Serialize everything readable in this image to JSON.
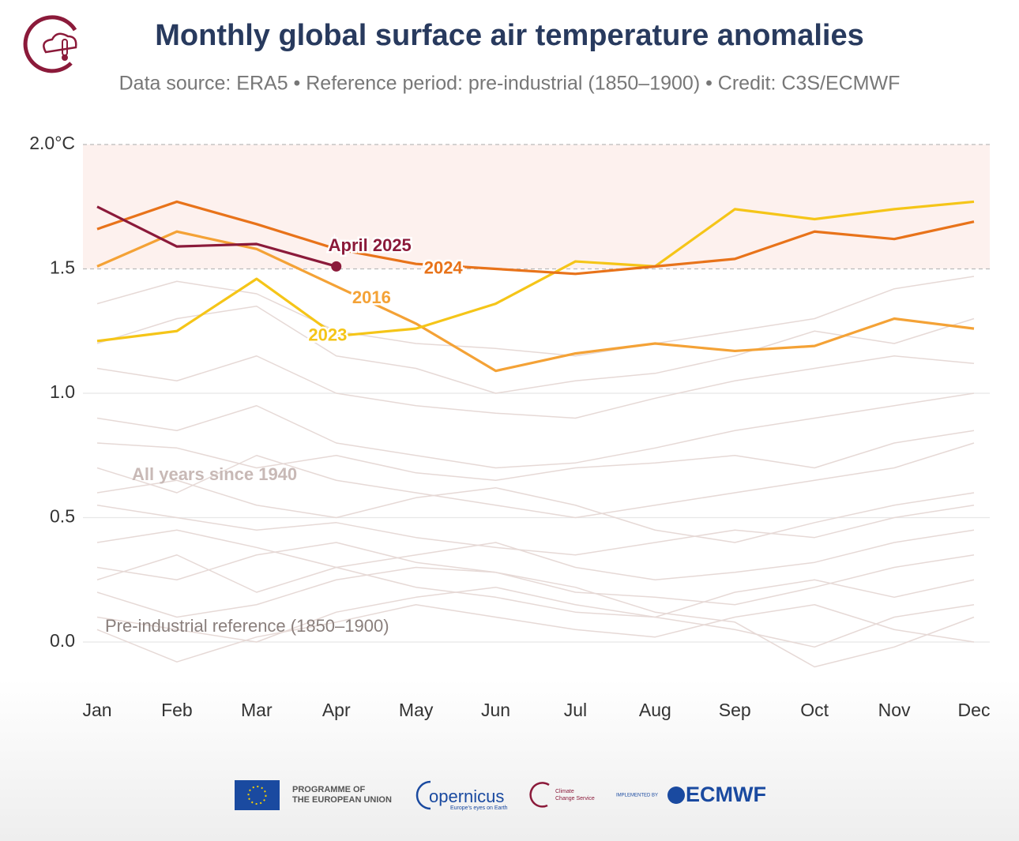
{
  "chart_data": {
    "type": "line",
    "title": "Monthly global surface air temperature anomalies",
    "subtitle": "Data source: ERA5 • Reference period: pre-industrial (1850–1900) • Credit: C3S/ECMWF",
    "categories": [
      "Jan",
      "Feb",
      "Mar",
      "Apr",
      "May",
      "Jun",
      "Jul",
      "Aug",
      "Sep",
      "Oct",
      "Nov",
      "Dec"
    ],
    "ylim": [
      -0.2,
      2.0
    ],
    "yticks": [
      {
        "value": 0,
        "label": "0.0"
      },
      0.5,
      {
        "value": 1,
        "label": "1.0"
      },
      1.5,
      {
        "value": 2,
        "label": "2.0°C"
      }
    ],
    "threshold": 1.5,
    "grid": true,
    "series": [
      {
        "name": "2016",
        "color": "#f4a236",
        "values": [
          1.51,
          1.65,
          1.58,
          1.43,
          1.28,
          1.09,
          1.16,
          1.2,
          1.17,
          1.19,
          1.3,
          1.26
        ]
      },
      {
        "name": "2023",
        "color": "#f5c518",
        "values": [
          1.21,
          1.25,
          1.46,
          1.23,
          1.26,
          1.36,
          1.53,
          1.51,
          1.74,
          1.7,
          1.74,
          1.77
        ]
      },
      {
        "name": "2024",
        "color": "#e8731a",
        "values": [
          1.66,
          1.77,
          1.68,
          1.58,
          1.52,
          1.5,
          1.48,
          1.51,
          1.54,
          1.65,
          1.62,
          1.69
        ]
      },
      {
        "name": "April 2025",
        "color": "#8b1a3a",
        "values": [
          1.75,
          1.59,
          1.6,
          1.51,
          null,
          null,
          null,
          null,
          null,
          null,
          null,
          null
        ]
      }
    ],
    "background_label": "All years since 1940",
    "background_color": "#e6d9d6",
    "background_series": [
      [
        0.1,
        0.05,
        0.0,
        0.12,
        0.18,
        0.22,
        0.15,
        0.1,
        0.05,
        -0.02,
        0.1,
        0.15
      ],
      [
        0.3,
        0.25,
        0.35,
        0.4,
        0.32,
        0.28,
        0.2,
        0.18,
        0.15,
        0.22,
        0.3,
        0.35
      ],
      [
        0.55,
        0.5,
        0.45,
        0.48,
        0.42,
        0.38,
        0.35,
        0.4,
        0.45,
        0.42,
        0.5,
        0.55
      ],
      [
        0.9,
        0.85,
        0.95,
        0.8,
        0.75,
        0.7,
        0.72,
        0.78,
        0.85,
        0.9,
        0.95,
        1.0
      ],
      [
        1.1,
        1.05,
        1.15,
        1.0,
        0.95,
        0.92,
        0.9,
        0.98,
        1.05,
        1.1,
        1.15,
        1.12
      ],
      [
        1.2,
        1.3,
        1.35,
        1.15,
        1.1,
        1.0,
        1.05,
        1.08,
        1.15,
        1.25,
        1.2,
        1.3
      ],
      [
        0.2,
        0.1,
        0.15,
        0.25,
        0.3,
        0.28,
        0.22,
        0.12,
        0.08,
        -0.1,
        -0.02,
        0.1
      ],
      [
        0.4,
        0.45,
        0.38,
        0.3,
        0.35,
        0.4,
        0.3,
        0.25,
        0.28,
        0.32,
        0.4,
        0.45
      ],
      [
        0.7,
        0.6,
        0.75,
        0.65,
        0.6,
        0.55,
        0.5,
        0.55,
        0.6,
        0.65,
        0.7,
        0.8
      ],
      [
        1.36,
        1.45,
        1.4,
        1.25,
        1.2,
        1.18,
        1.15,
        1.2,
        1.25,
        1.3,
        1.42,
        1.47
      ],
      [
        0.05,
        -0.08,
        0.02,
        0.08,
        0.15,
        0.1,
        0.05,
        0.02,
        0.1,
        0.15,
        0.05,
        0.0
      ],
      [
        0.6,
        0.65,
        0.55,
        0.5,
        0.58,
        0.62,
        0.55,
        0.45,
        0.4,
        0.48,
        0.55,
        0.6
      ],
      [
        0.8,
        0.78,
        0.7,
        0.75,
        0.68,
        0.65,
        0.7,
        0.72,
        0.75,
        0.7,
        0.8,
        0.85
      ],
      [
        0.25,
        0.35,
        0.2,
        0.3,
        0.22,
        0.18,
        0.12,
        0.1,
        0.2,
        0.25,
        0.18,
        0.25
      ]
    ],
    "reference_label": "Pre-industrial reference (1850–1900)"
  },
  "footer": {
    "eu": [
      "PROGRAMME OF",
      "THE EUROPEAN UNION"
    ],
    "copernicus": "opernicus",
    "copernicus_tagline": "Europe's eyes on Earth",
    "c3s": [
      "Climate",
      "Change Service"
    ],
    "implemented": "IMPLEMENTED BY",
    "ecmwf": "ECMWF"
  }
}
